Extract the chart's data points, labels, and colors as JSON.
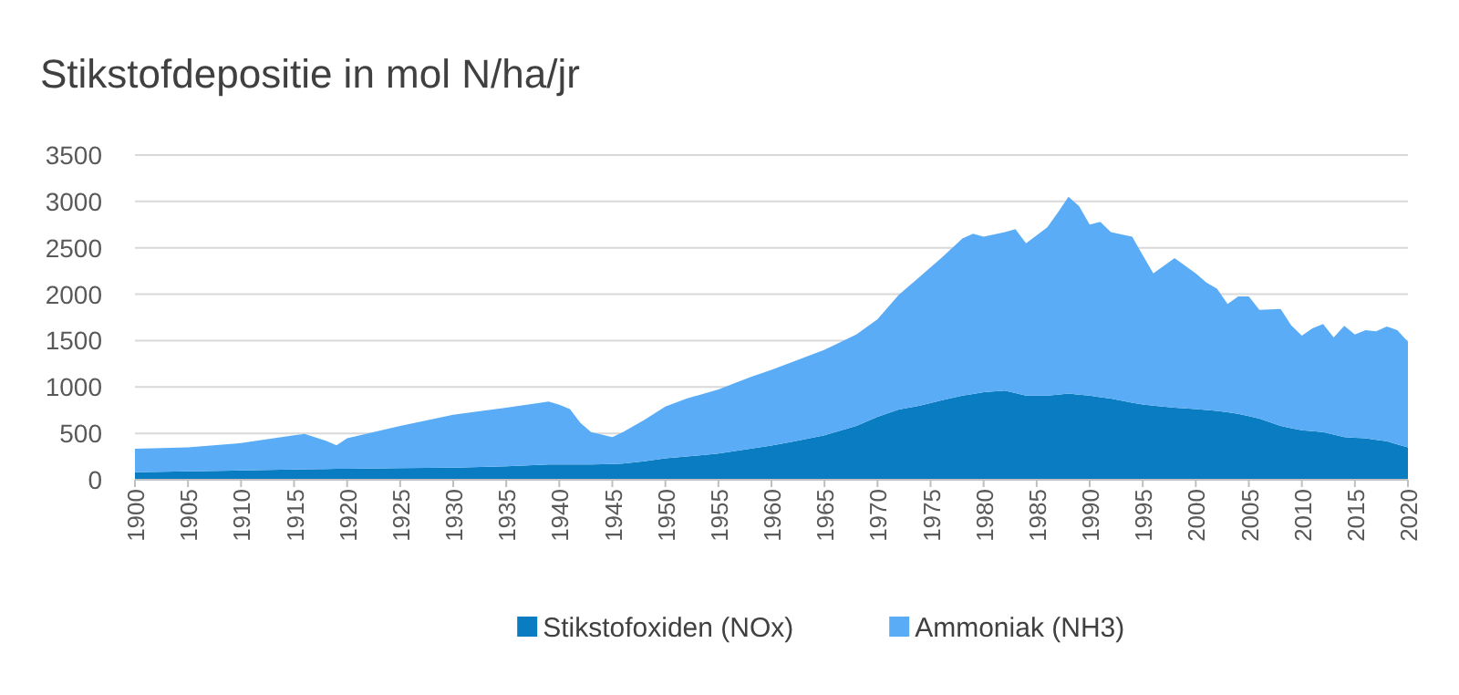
{
  "chart_data": {
    "type": "area",
    "title": "Stikstofdepositie in mol N/ha/jr",
    "stacked": true,
    "x": [
      1900,
      1905,
      1910,
      1915,
      1916,
      1918,
      1919,
      1920,
      1925,
      1930,
      1935,
      1939,
      1940,
      1941,
      1942,
      1943,
      1945,
      1946,
      1948,
      1950,
      1952,
      1955,
      1958,
      1960,
      1962,
      1965,
      1968,
      1970,
      1972,
      1974,
      1976,
      1978,
      1979,
      1980,
      1982,
      1983,
      1984,
      1986,
      1987,
      1988,
      1989,
      1990,
      1991,
      1992,
      1994,
      1995,
      1996,
      1998,
      2000,
      2001,
      2002,
      2003,
      2004,
      2005,
      2006,
      2008,
      2009,
      2010,
      2011,
      2012,
      2013,
      2014,
      2015,
      2016,
      2017,
      2018,
      2019,
      2020
    ],
    "series": [
      {
        "name": "Stikstofoxiden (NOx)",
        "color": "#0a7dc2",
        "values": [
          80,
          90,
          100,
          110,
          112,
          115,
          117,
          118,
          125,
          130,
          145,
          165,
          165,
          165,
          165,
          165,
          170,
          175,
          200,
          230,
          250,
          283,
          335,
          368,
          410,
          480,
          580,
          678,
          757,
          800,
          855,
          908,
          925,
          945,
          960,
          935,
          908,
          908,
          918,
          928,
          918,
          908,
          890,
          875,
          830,
          810,
          800,
          776,
          763,
          753,
          743,
          727,
          710,
          685,
          658,
          579,
          556,
          533,
          523,
          513,
          487,
          460,
          453,
          447,
          431,
          415,
          382,
          349
        ]
      },
      {
        "name": "Ammoniak (NH3)",
        "color": "#5aacf7",
        "values": [
          255,
          260,
          295,
          370,
          381,
          305,
          253,
          329,
          455,
          570,
          631,
          677,
          644,
          598,
          447,
          348,
          290,
          338,
          445,
          560,
          625,
          691,
          770,
          816,
          860,
          920,
          986,
          1052,
          1236,
          1390,
          1535,
          1692,
          1727,
          1675,
          1710,
          1765,
          1642,
          1812,
          1962,
          2122,
          2032,
          1842,
          1890,
          1795,
          1790,
          1610,
          1425,
          1614,
          1462,
          1372,
          1317,
          1168,
          1265,
          1290,
          1172,
          1261,
          1109,
          1020,
          1109,
          1165,
          1046,
          1198,
          1113,
          1165,
          1169,
          1237,
          1230,
          1138
        ]
      }
    ],
    "xlim": [
      1900,
      2020
    ],
    "xticks": [
      1900,
      1905,
      1910,
      1915,
      1920,
      1925,
      1930,
      1935,
      1940,
      1945,
      1950,
      1955,
      1960,
      1965,
      1970,
      1975,
      1980,
      1985,
      1990,
      1995,
      2000,
      2005,
      2010,
      2015,
      2020
    ],
    "ylim": [
      0,
      3500
    ],
    "yticks": [
      0,
      500,
      1000,
      1500,
      2000,
      2500,
      3000,
      3500
    ],
    "grid": "y",
    "legend": "bottom"
  }
}
